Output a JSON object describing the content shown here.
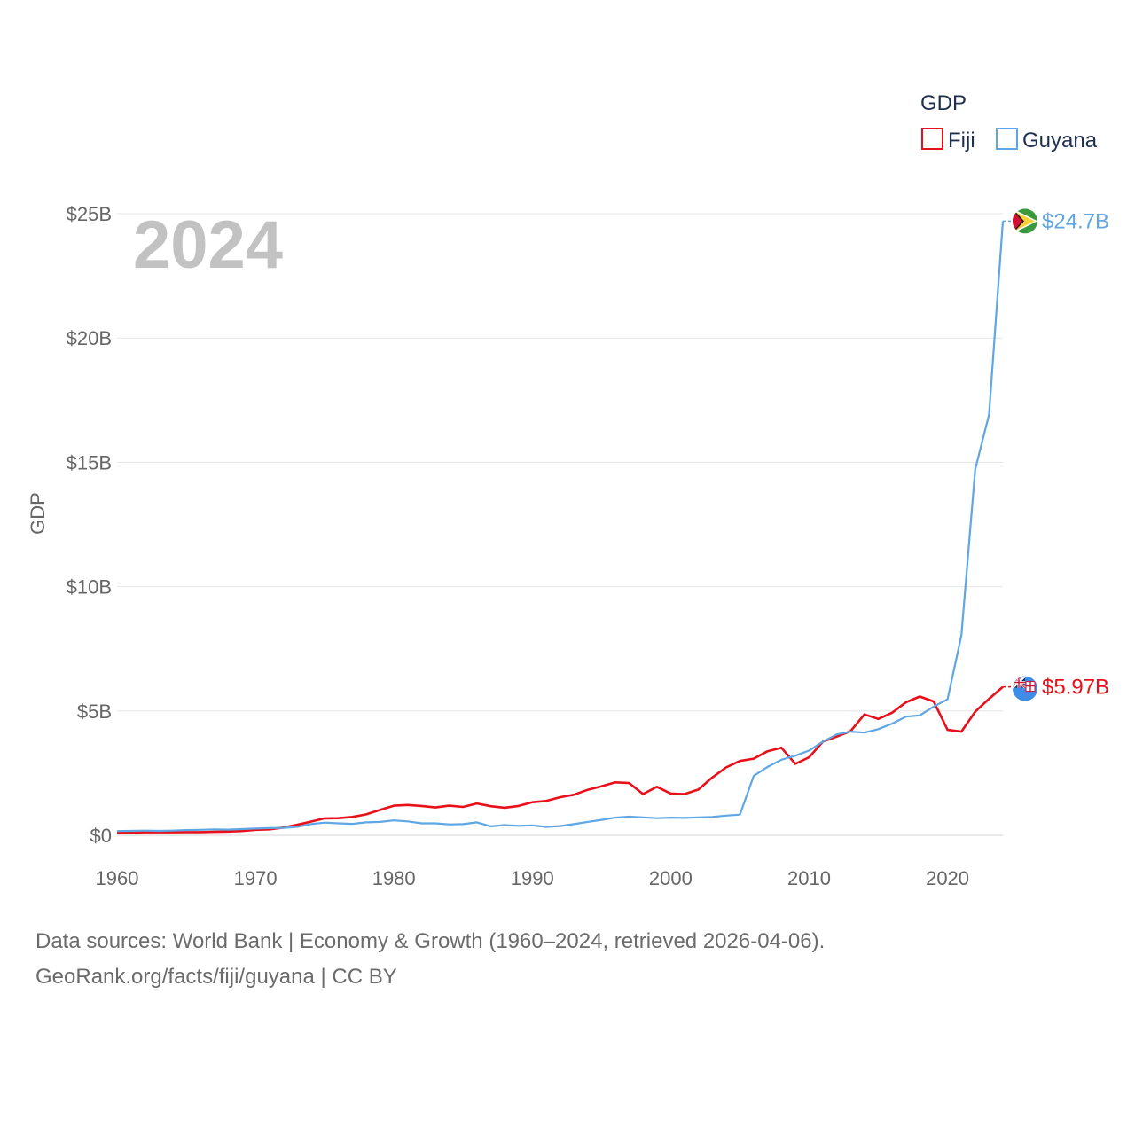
{
  "chart_data": {
    "type": "line",
    "title": "",
    "year_watermark": "2024",
    "xlabel": "",
    "ylabel": "GDP",
    "legend": {
      "title": "GDP",
      "placement": "top-right"
    },
    "xlim": [
      1960,
      2024
    ],
    "ylim": [
      0,
      25
    ],
    "x_ticks": [
      1960,
      1970,
      1980,
      1990,
      2000,
      2010,
      2020
    ],
    "x_tick_labels": [
      "1960",
      "1970",
      "1980",
      "1990",
      "2000",
      "2010",
      "2020"
    ],
    "y_ticks": [
      0,
      5,
      10,
      15,
      20,
      25
    ],
    "y_tick_labels": [
      "$0",
      "$5B",
      "$10B",
      "$15B",
      "$20B",
      "$25B"
    ],
    "grid": true,
    "x": [
      1960,
      1961,
      1962,
      1963,
      1964,
      1965,
      1966,
      1967,
      1968,
      1969,
      1970,
      1971,
      1972,
      1973,
      1974,
      1975,
      1976,
      1977,
      1978,
      1979,
      1980,
      1981,
      1982,
      1983,
      1984,
      1985,
      1986,
      1987,
      1988,
      1989,
      1990,
      1991,
      1992,
      1993,
      1994,
      1995,
      1996,
      1997,
      1998,
      1999,
      2000,
      2001,
      2002,
      2003,
      2004,
      2005,
      2006,
      2007,
      2008,
      2009,
      2010,
      2011,
      2012,
      2013,
      2014,
      2015,
      2016,
      2017,
      2018,
      2019,
      2020,
      2021,
      2022,
      2023,
      2024
    ],
    "series": [
      {
        "name": "Fiji",
        "color": "#e8101a",
        "end_label": "$5.97B",
        "values": [
          0.11,
          0.11,
          0.12,
          0.12,
          0.12,
          0.13,
          0.13,
          0.14,
          0.15,
          0.17,
          0.22,
          0.24,
          0.31,
          0.42,
          0.55,
          0.68,
          0.69,
          0.74,
          0.84,
          1.02,
          1.19,
          1.22,
          1.18,
          1.12,
          1.19,
          1.14,
          1.28,
          1.17,
          1.11,
          1.18,
          1.33,
          1.38,
          1.53,
          1.63,
          1.83,
          1.97,
          2.13,
          2.1,
          1.66,
          1.95,
          1.68,
          1.66,
          1.84,
          2.32,
          2.73,
          2.99,
          3.08,
          3.38,
          3.52,
          2.87,
          3.14,
          3.77,
          3.97,
          4.19,
          4.86,
          4.68,
          4.93,
          5.35,
          5.58,
          5.38,
          4.24,
          4.17,
          4.97,
          5.49,
          5.97
        ]
      },
      {
        "name": "Guyana",
        "color": "#5ea7e4",
        "end_label": "$24.7B",
        "values": [
          0.17,
          0.18,
          0.19,
          0.18,
          0.19,
          0.21,
          0.22,
          0.24,
          0.23,
          0.25,
          0.27,
          0.29,
          0.3,
          0.34,
          0.45,
          0.51,
          0.48,
          0.46,
          0.52,
          0.54,
          0.6,
          0.56,
          0.48,
          0.48,
          0.44,
          0.45,
          0.52,
          0.36,
          0.41,
          0.38,
          0.4,
          0.34,
          0.37,
          0.45,
          0.54,
          0.62,
          0.71,
          0.75,
          0.72,
          0.69,
          0.71,
          0.7,
          0.72,
          0.74,
          0.79,
          0.83,
          2.39,
          2.75,
          3.04,
          3.2,
          3.41,
          3.77,
          4.06,
          4.17,
          4.13,
          4.27,
          4.49,
          4.77,
          4.82,
          5.18,
          5.47,
          8.04,
          14.72,
          16.92,
          24.7
        ]
      }
    ]
  },
  "source_text": {
    "line1": "Data sources: World Bank | Economy & Growth (1960–2024, retrieved 2026-04-06).",
    "line2": "GeoRank.org/facts/fiji/guyana | CC BY"
  }
}
